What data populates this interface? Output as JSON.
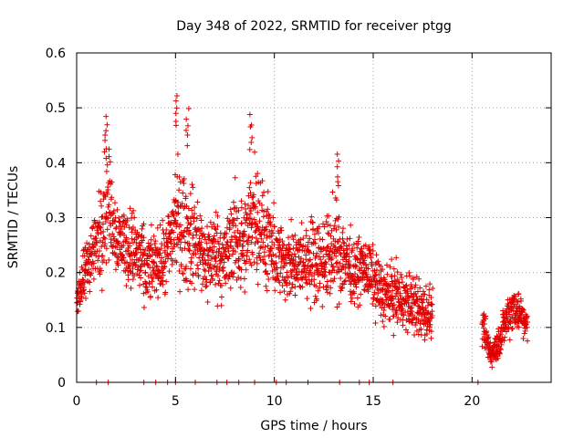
{
  "chart_data": {
    "type": "scatter",
    "title": "Day 348 of 2022, SRMTID for receiver ptgg",
    "xlabel": "GPS time / hours",
    "ylabel": "SRMTID / TECUs",
    "xlim": [
      0,
      24
    ],
    "ylim": [
      0,
      0.6
    ],
    "xticks": [
      0,
      5,
      10,
      15,
      20
    ],
    "yticks": [
      0,
      0.1,
      0.2,
      0.3,
      0.4,
      0.5,
      0.6
    ],
    "xtick_labels": [
      "0",
      "5",
      "10",
      "15",
      "20"
    ],
    "ytick_labels": [
      "0",
      "0.1",
      "0.2",
      "0.3",
      "0.4",
      "0.5",
      "0.6"
    ],
    "grid": true,
    "marker": "+",
    "color": "#e00000",
    "series": [
      {
        "name": "SRMTID",
        "envelope_description": "approximate trend of the dense point cloud",
        "x": [
          0.0,
          0.2,
          0.4,
          0.6,
          0.8,
          1.0,
          1.2,
          1.4,
          1.6,
          1.8,
          2.0,
          2.5,
          3.0,
          3.5,
          4.0,
          4.5,
          5.0,
          5.5,
          6.0,
          6.5,
          7.0,
          7.5,
          8.0,
          8.5,
          9.0,
          9.5,
          10.0,
          10.5,
          11.0,
          11.5,
          12.0,
          12.5,
          13.0,
          13.5,
          14.0,
          14.5,
          15.0,
          15.5,
          16.0,
          16.5,
          17.0,
          17.5,
          18.0,
          20.5,
          20.8,
          21.0,
          21.3,
          21.6,
          21.9,
          22.2,
          22.5,
          22.8
        ],
        "center": [
          0.14,
          0.17,
          0.19,
          0.22,
          0.24,
          0.25,
          0.27,
          0.32,
          0.33,
          0.3,
          0.27,
          0.25,
          0.24,
          0.2,
          0.22,
          0.22,
          0.3,
          0.27,
          0.26,
          0.22,
          0.24,
          0.22,
          0.27,
          0.24,
          0.32,
          0.26,
          0.23,
          0.22,
          0.21,
          0.22,
          0.23,
          0.22,
          0.24,
          0.23,
          0.2,
          0.21,
          0.19,
          0.16,
          0.16,
          0.15,
          0.14,
          0.13,
          0.12,
          0.1,
          0.07,
          0.05,
          0.07,
          0.1,
          0.13,
          0.14,
          0.12,
          0.1
        ],
        "spread": [
          0.02,
          0.04,
          0.05,
          0.05,
          0.06,
          0.06,
          0.08,
          0.1,
          0.09,
          0.08,
          0.06,
          0.06,
          0.07,
          0.06,
          0.05,
          0.06,
          0.1,
          0.09,
          0.08,
          0.07,
          0.07,
          0.07,
          0.08,
          0.08,
          0.1,
          0.08,
          0.07,
          0.06,
          0.06,
          0.06,
          0.07,
          0.07,
          0.08,
          0.07,
          0.05,
          0.05,
          0.05,
          0.05,
          0.05,
          0.05,
          0.05,
          0.05,
          0.04,
          0.03,
          0.03,
          0.02,
          0.03,
          0.03,
          0.04,
          0.04,
          0.03,
          0.03
        ],
        "peaks": [
          {
            "x": 1.5,
            "y": 0.49
          },
          {
            "x": 5.0,
            "y": 0.53
          },
          {
            "x": 5.6,
            "y": 0.5
          },
          {
            "x": 8.8,
            "y": 0.49
          },
          {
            "x": 13.2,
            "y": 0.42
          }
        ],
        "zero_values_x": [
          1.0,
          1.6,
          3.4,
          4.0,
          4.6,
          5.0,
          6.0,
          7.1,
          7.6,
          8.2,
          9.0,
          10.1,
          10.6,
          11.7,
          13.3,
          14.3,
          14.8,
          16.0,
          20.3
        ]
      }
    ]
  }
}
